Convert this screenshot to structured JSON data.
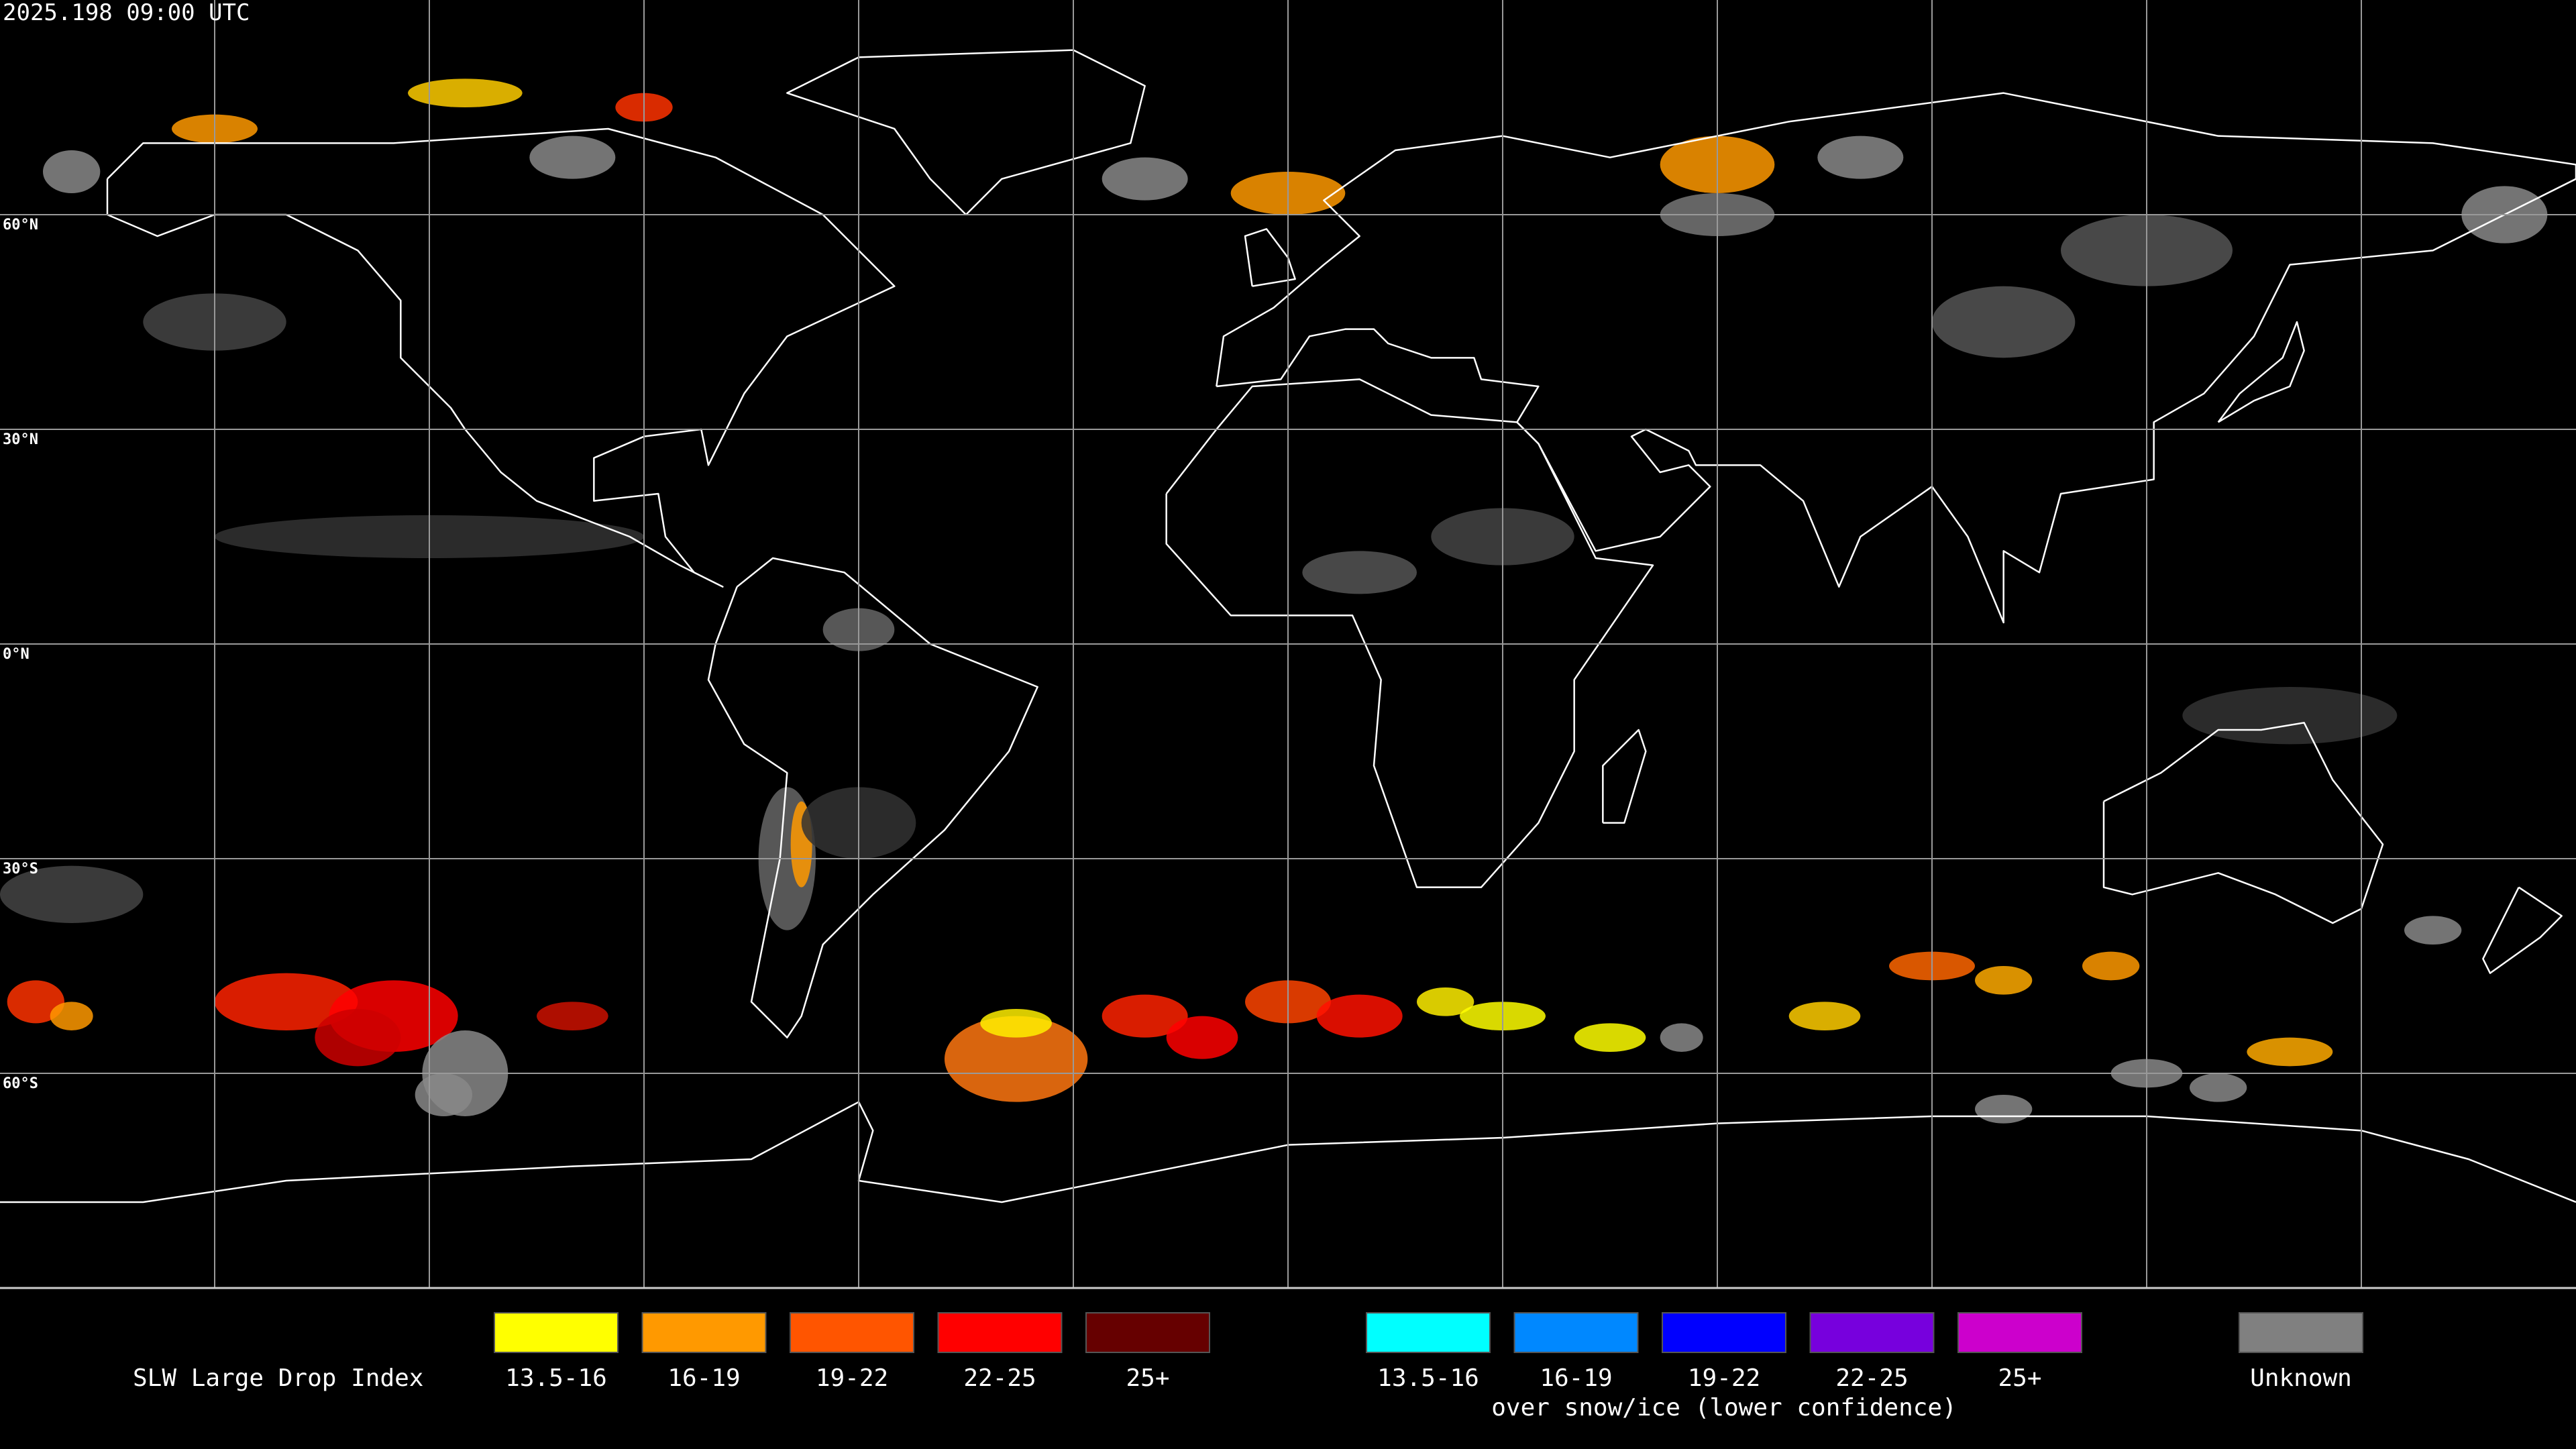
{
  "header": {
    "title": "2025.198 09:00 UTC"
  },
  "map": {
    "latitude_labels": [
      "60°N",
      "30°N",
      "0°N",
      "30°S",
      "60°S"
    ]
  },
  "legend": {
    "title": "SLW Large Drop Index",
    "groups": [
      {
        "items": [
          {
            "label": "13.5-16",
            "color": "#ffff00"
          },
          {
            "label": "16-19",
            "color": "#ff9900"
          },
          {
            "label": "19-22",
            "color": "#ff5500"
          },
          {
            "label": "22-25",
            "color": "#ff0000"
          },
          {
            "label": "25+",
            "color": "#660000"
          }
        ]
      },
      {
        "items": [
          {
            "label": "13.5-16",
            "color": "#00ffff"
          },
          {
            "label": "16-19",
            "color": "#0088ff"
          },
          {
            "label": "19-22",
            "color": "#0000ff"
          },
          {
            "label": "22-25",
            "color": "#7700dd"
          },
          {
            "label": "25+",
            "color": "#cc00cc"
          }
        ],
        "note": "over snow/ice (lower confidence)"
      }
    ],
    "unknown": {
      "label": "Unknown",
      "color": "#808080"
    }
  }
}
